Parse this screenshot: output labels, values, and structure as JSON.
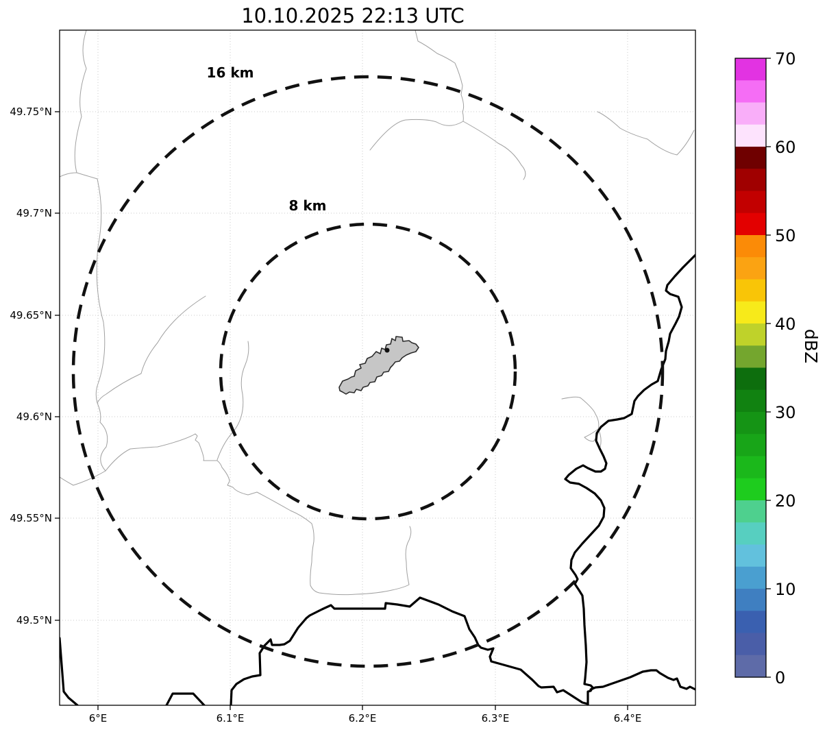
{
  "title": "10.10.2025 22:13 UTC",
  "map": {
    "range_rings": [
      {
        "label": "16 km",
        "radius_km": 16
      },
      {
        "label": "8 km",
        "radius_km": 8
      }
    ],
    "site_feature": "airport-area-polygon"
  },
  "axes": {
    "x_ticks": [
      "6°E",
      "6.1°E",
      "6.2°E",
      "6.3°E",
      "6.4°E"
    ],
    "y_ticks": [
      "49.75°N",
      "49.7°N",
      "49.65°N",
      "49.6°N",
      "49.55°N",
      "49.5°N"
    ]
  },
  "colorbar": {
    "label": "dBZ",
    "min": 0,
    "max": 70,
    "ticks": [
      "70",
      "60",
      "50",
      "40",
      "30",
      "20",
      "10",
      "0"
    ],
    "segments": [
      {
        "from": 67.5,
        "to": 70,
        "color": "#e233e2"
      },
      {
        "from": 65,
        "to": 67.5,
        "color": "#f56df5"
      },
      {
        "from": 62.5,
        "to": 65,
        "color": "#f9aef9"
      },
      {
        "from": 60,
        "to": 62.5,
        "color": "#fde3fd"
      },
      {
        "from": 57.5,
        "to": 60,
        "color": "#6f0000"
      },
      {
        "from": 55,
        "to": 57.5,
        "color": "#a00000"
      },
      {
        "from": 52.5,
        "to": 55,
        "color": "#c20000"
      },
      {
        "from": 50,
        "to": 52.5,
        "color": "#e30000"
      },
      {
        "from": 47.5,
        "to": 50,
        "color": "#fb8b07"
      },
      {
        "from": 45,
        "to": 47.5,
        "color": "#fba312"
      },
      {
        "from": 42.5,
        "to": 45,
        "color": "#f9c507"
      },
      {
        "from": 40,
        "to": 42.5,
        "color": "#f7ea1a"
      },
      {
        "from": 37.5,
        "to": 40,
        "color": "#bfd22a"
      },
      {
        "from": 35,
        "to": 37.5,
        "color": "#74a62e"
      },
      {
        "from": 32.5,
        "to": 35,
        "color": "#0d6e0d"
      },
      {
        "from": 30,
        "to": 32.5,
        "color": "#118211"
      },
      {
        "from": 27.5,
        "to": 30,
        "color": "#159415"
      },
      {
        "from": 25,
        "to": 27.5,
        "color": "#18a518"
      },
      {
        "from": 22.5,
        "to": 25,
        "color": "#1bb81b"
      },
      {
        "from": 20,
        "to": 22.5,
        "color": "#1ecc1e"
      },
      {
        "from": 17.5,
        "to": 20,
        "color": "#4ed08e"
      },
      {
        "from": 15,
        "to": 17.5,
        "color": "#57cfc0"
      },
      {
        "from": 12.5,
        "to": 15,
        "color": "#62c1dd"
      },
      {
        "from": 10,
        "to": 12.5,
        "color": "#4a9fd0"
      },
      {
        "from": 7.5,
        "to": 10,
        "color": "#3f7fc1"
      },
      {
        "from": 5,
        "to": 7.5,
        "color": "#3a60b0"
      },
      {
        "from": 2.5,
        "to": 5,
        "color": "#4a5ea8"
      },
      {
        "from": 0,
        "to": 2.5,
        "color": "#5e6ba8"
      }
    ]
  }
}
